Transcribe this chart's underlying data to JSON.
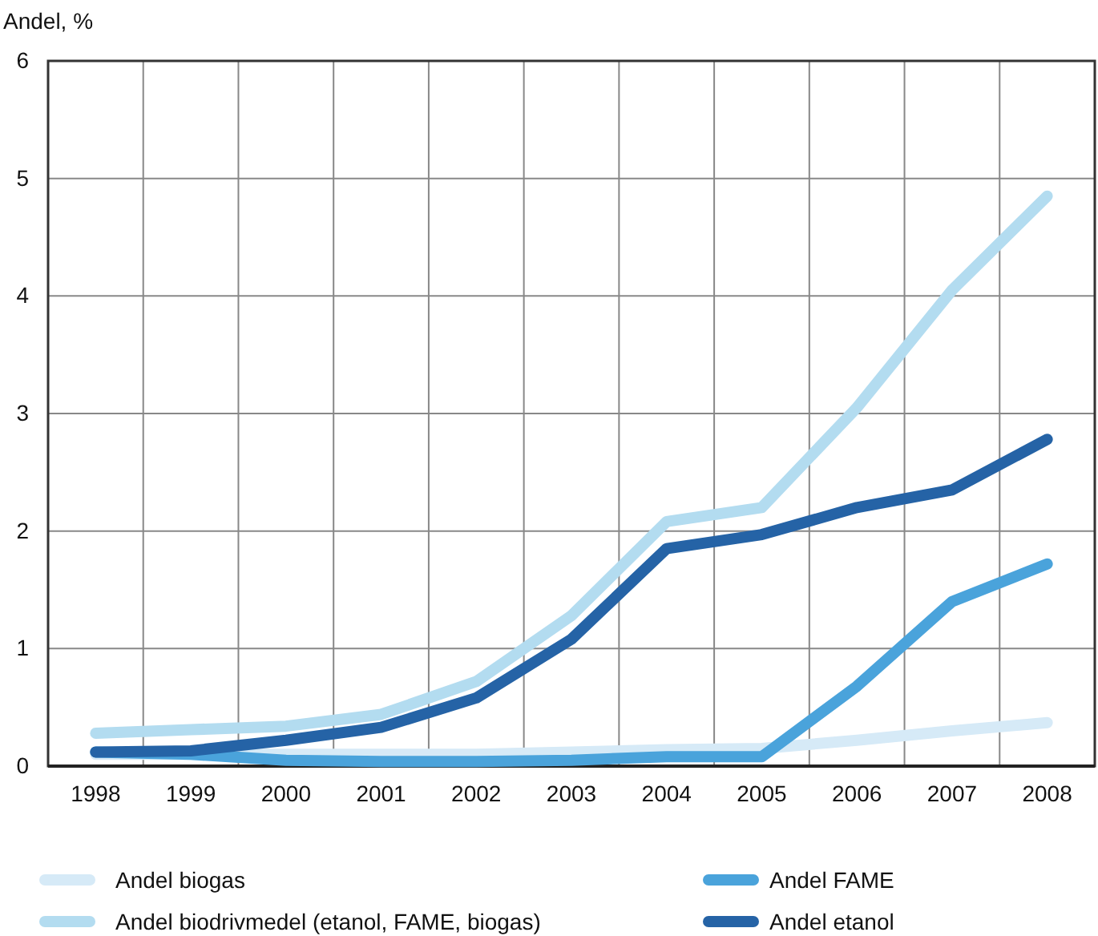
{
  "chart_data": {
    "type": "line",
    "ylabel": "Andel, %",
    "categories": [
      "1998",
      "1999",
      "2000",
      "2001",
      "2002",
      "2003",
      "2004",
      "2005",
      "2006",
      "2007",
      "2008"
    ],
    "ylim": [
      0,
      6
    ],
    "yticks": [
      0,
      1,
      2,
      3,
      4,
      5,
      6
    ],
    "grid": true,
    "legend": "bottom",
    "marker": "none",
    "line_style": "solid",
    "series": [
      {
        "name": "Andel biogas",
        "color": "#d6eaf7",
        "values": [
          0.1,
          0.1,
          0.1,
          0.1,
          0.1,
          0.12,
          0.14,
          0.15,
          0.22,
          0.3,
          0.37
        ]
      },
      {
        "name": "Andel biodrivmedel (etanol, FAME, biogas)",
        "color": "#b3dcf0",
        "values": [
          0.28,
          0.31,
          0.34,
          0.44,
          0.72,
          1.28,
          2.08,
          2.2,
          3.05,
          4.05,
          4.85
        ]
      },
      {
        "name": "Andel FAME",
        "color": "#4aa3db",
        "values": [
          0.12,
          0.1,
          0.05,
          0.04,
          0.04,
          0.05,
          0.08,
          0.08,
          0.68,
          1.4,
          1.72
        ]
      },
      {
        "name": "Andel etanol",
        "color": "#2563a6",
        "values": [
          0.12,
          0.13,
          0.22,
          0.33,
          0.58,
          1.08,
          1.85,
          1.97,
          2.2,
          2.35,
          2.78
        ]
      }
    ]
  }
}
